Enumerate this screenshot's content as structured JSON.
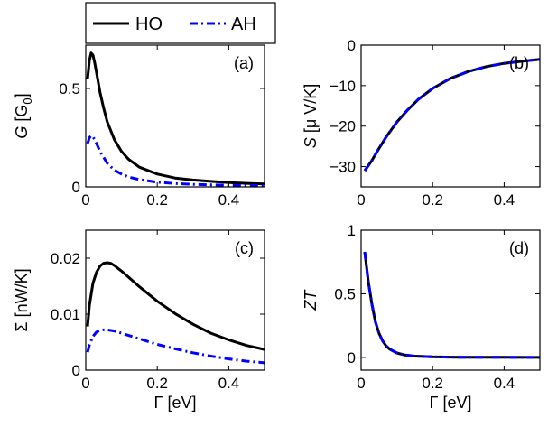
{
  "legend": {
    "entries": [
      {
        "name": "HO",
        "color": "#000000",
        "style": "solid"
      },
      {
        "name": "AH",
        "color": "#0000ff",
        "style": "dashdot"
      }
    ]
  },
  "chart_data": [
    {
      "type": "line",
      "panel_label": "(a)",
      "xlabel": "",
      "ylabel": "G [G",
      "ylabel_italic": "G",
      "ylabel_rest": " [G",
      "ylabel_sub": "0",
      "ylabel_close": "]",
      "xlim": [
        0,
        0.5
      ],
      "ylim": [
        0,
        0.72
      ],
      "xticks": [
        0,
        0.2,
        0.4
      ],
      "xtick_labels": [
        "0",
        "0.2",
        "0.4"
      ],
      "yticks": [
        0,
        0.5
      ],
      "ytick_labels": [
        "0",
        "0.5"
      ],
      "series": [
        {
          "name": "HO",
          "color": "#000000",
          "style": "solid",
          "x": [
            0.005,
            0.01,
            0.015,
            0.02,
            0.025,
            0.03,
            0.04,
            0.05,
            0.06,
            0.08,
            0.1,
            0.12,
            0.15,
            0.2,
            0.25,
            0.3,
            0.35,
            0.4,
            0.45,
            0.5
          ],
          "y": [
            0.55,
            0.64,
            0.68,
            0.67,
            0.63,
            0.58,
            0.48,
            0.4,
            0.33,
            0.24,
            0.18,
            0.14,
            0.1,
            0.065,
            0.045,
            0.035,
            0.028,
            0.022,
            0.018,
            0.015
          ]
        },
        {
          "name": "AH",
          "color": "#0000ff",
          "style": "dashdot",
          "x": [
            0.005,
            0.01,
            0.015,
            0.02,
            0.025,
            0.03,
            0.04,
            0.05,
            0.06,
            0.08,
            0.1,
            0.12,
            0.15,
            0.2,
            0.25,
            0.3,
            0.35,
            0.4,
            0.45,
            0.5
          ],
          "y": [
            0.22,
            0.25,
            0.26,
            0.255,
            0.24,
            0.22,
            0.18,
            0.15,
            0.12,
            0.085,
            0.065,
            0.05,
            0.037,
            0.024,
            0.017,
            0.013,
            0.01,
            0.008,
            0.007,
            0.006
          ]
        }
      ]
    },
    {
      "type": "line",
      "panel_label": "(b)",
      "xlabel": "",
      "ylabel_italic": "S",
      "ylabel_rest": " [μ V/K]",
      "xlim": [
        0,
        0.5
      ],
      "ylim": [
        -35,
        0
      ],
      "xticks": [
        0,
        0.2,
        0.4
      ],
      "xtick_labels": [
        "0",
        "0.2",
        "0.4"
      ],
      "yticks": [
        -30,
        -20,
        -10,
        0
      ],
      "ytick_labels": [
        "−30",
        "−20",
        "−10",
        "0"
      ],
      "series": [
        {
          "name": "HO",
          "color": "#000000",
          "style": "solid",
          "x": [
            0.01,
            0.03,
            0.05,
            0.07,
            0.1,
            0.13,
            0.16,
            0.2,
            0.25,
            0.3,
            0.35,
            0.4,
            0.45,
            0.5
          ],
          "y": [
            -31,
            -28.5,
            -25.5,
            -22.7,
            -19,
            -16,
            -13.4,
            -10.7,
            -8.2,
            -6.5,
            -5.3,
            -4.5,
            -4,
            -3.5
          ]
        },
        {
          "name": "AH",
          "color": "#0000ff",
          "style": "dashdot",
          "x": [
            0.01,
            0.03,
            0.05,
            0.07,
            0.1,
            0.13,
            0.16,
            0.2,
            0.25,
            0.3,
            0.35,
            0.4,
            0.45,
            0.5
          ],
          "y": [
            -31,
            -28.5,
            -25.5,
            -22.7,
            -19,
            -16,
            -13.4,
            -10.7,
            -8.2,
            -6.5,
            -5.3,
            -4.5,
            -4,
            -3.5
          ]
        }
      ]
    },
    {
      "type": "line",
      "panel_label": "(c)",
      "xlabel": "Γ [eV]",
      "ylabel_italic": "",
      "ylabel_rest": "Σ  [nW/K]",
      "xlim": [
        0,
        0.5
      ],
      "ylim": [
        0,
        0.025
      ],
      "xticks": [
        0,
        0.2,
        0.4
      ],
      "xtick_labels": [
        "0",
        "0.2",
        "0.4"
      ],
      "yticks": [
        0,
        0.01,
        0.02
      ],
      "ytick_labels": [
        "0",
        "0.01",
        "0.02"
      ],
      "series": [
        {
          "name": "HO",
          "color": "#000000",
          "style": "solid",
          "x": [
            0.005,
            0.01,
            0.02,
            0.03,
            0.04,
            0.05,
            0.06,
            0.07,
            0.08,
            0.1,
            0.12,
            0.15,
            0.2,
            0.25,
            0.3,
            0.35,
            0.4,
            0.45,
            0.5
          ],
          "y": [
            0.0078,
            0.0115,
            0.0155,
            0.0175,
            0.0186,
            0.0191,
            0.0192,
            0.0191,
            0.0187,
            0.0177,
            0.0166,
            0.0149,
            0.0123,
            0.0101,
            0.0082,
            0.0066,
            0.0054,
            0.0044,
            0.0037
          ]
        },
        {
          "name": "AH",
          "color": "#0000ff",
          "style": "dashdot",
          "x": [
            0.005,
            0.01,
            0.02,
            0.03,
            0.04,
            0.05,
            0.06,
            0.07,
            0.08,
            0.1,
            0.12,
            0.15,
            0.2,
            0.25,
            0.3,
            0.35,
            0.4,
            0.45,
            0.5
          ],
          "y": [
            0.0032,
            0.0045,
            0.006,
            0.0068,
            0.0071,
            0.0072,
            0.0072,
            0.0071,
            0.007,
            0.0066,
            0.0062,
            0.0056,
            0.0046,
            0.0038,
            0.0031,
            0.0025,
            0.002,
            0.0016,
            0.0013
          ]
        }
      ]
    },
    {
      "type": "line",
      "panel_label": "(d)",
      "xlabel": "Γ [eV]",
      "ylabel_italic": "ZT",
      "ylabel_rest": "",
      "xlim": [
        0,
        0.5
      ],
      "ylim": [
        -0.1,
        1.0
      ],
      "xticks": [
        0,
        0.2,
        0.4
      ],
      "xtick_labels": [
        "0",
        "0.2",
        "0.4"
      ],
      "yticks": [
        0,
        0.5,
        1
      ],
      "ytick_labels": [
        "0",
        "0.5",
        "1"
      ],
      "series": [
        {
          "name": "HO",
          "color": "#000000",
          "style": "solid",
          "x": [
            0.01,
            0.015,
            0.02,
            0.03,
            0.04,
            0.05,
            0.06,
            0.07,
            0.08,
            0.1,
            0.12,
            0.15,
            0.2,
            0.25,
            0.3,
            0.4,
            0.5
          ],
          "y": [
            0.83,
            0.72,
            0.6,
            0.42,
            0.28,
            0.19,
            0.13,
            0.09,
            0.065,
            0.035,
            0.02,
            0.01,
            0.004,
            0.002,
            0.001,
            0.0005,
            0.0003
          ]
        },
        {
          "name": "AH",
          "color": "#0000ff",
          "style": "dashdot",
          "x": [
            0.01,
            0.015,
            0.02,
            0.03,
            0.04,
            0.05,
            0.06,
            0.07,
            0.08,
            0.1,
            0.12,
            0.15,
            0.2,
            0.25,
            0.3,
            0.4,
            0.5
          ],
          "y": [
            0.83,
            0.72,
            0.6,
            0.42,
            0.28,
            0.19,
            0.13,
            0.09,
            0.065,
            0.035,
            0.02,
            0.01,
            0.004,
            0.002,
            0.001,
            0.0005,
            0.0003
          ]
        }
      ]
    }
  ]
}
